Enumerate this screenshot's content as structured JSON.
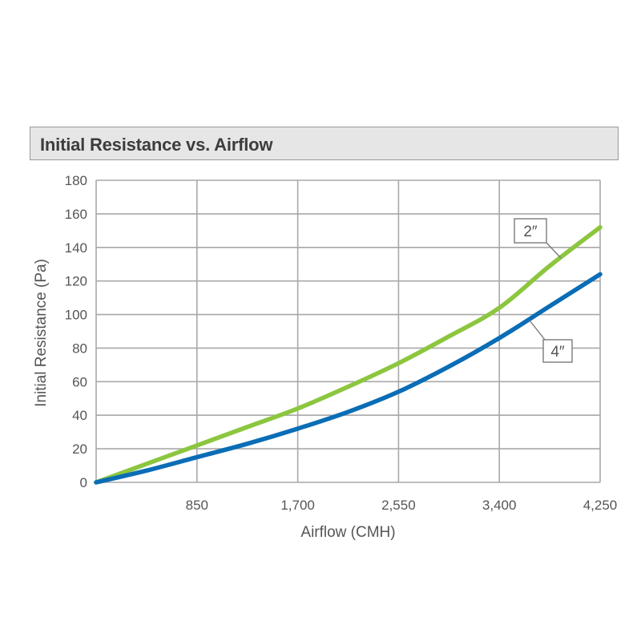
{
  "chart_data": {
    "type": "line",
    "title": "Initial Resistance vs. Airflow",
    "xlabel": "Airflow (CMH)",
    "ylabel": "Initial Resistance (Pa)",
    "xlim": [
      0,
      4250
    ],
    "ylim": [
      0,
      180
    ],
    "x_ticks": [
      {
        "value": 850,
        "label": "850"
      },
      {
        "value": 1700,
        "label": "1,700"
      },
      {
        "value": 2550,
        "label": "2,550"
      },
      {
        "value": 3400,
        "label": "3,400"
      },
      {
        "value": 4250,
        "label": "4,250"
      }
    ],
    "y_ticks": [
      {
        "value": 0,
        "label": "0"
      },
      {
        "value": 20,
        "label": "20"
      },
      {
        "value": 40,
        "label": "40"
      },
      {
        "value": 60,
        "label": "60"
      },
      {
        "value": 80,
        "label": "80"
      },
      {
        "value": 100,
        "label": "100"
      },
      {
        "value": 120,
        "label": "120"
      },
      {
        "value": 140,
        "label": "140"
      },
      {
        "value": 160,
        "label": "160"
      },
      {
        "value": 180,
        "label": "180"
      }
    ],
    "grid": true,
    "series": [
      {
        "name": "2″",
        "color": "#8cc63f",
        "x": [
          0,
          425,
          850,
          1275,
          1700,
          2125,
          2550,
          2975,
          3400,
          3825,
          4250
        ],
        "y": [
          0,
          11,
          22,
          33,
          44,
          57,
          71,
          87,
          104,
          129,
          152
        ]
      },
      {
        "name": "4″",
        "color": "#0a6db6",
        "x": [
          0,
          425,
          850,
          1275,
          1700,
          2125,
          2550,
          2975,
          3400,
          3825,
          4250
        ],
        "y": [
          0,
          7,
          15,
          23,
          32,
          42,
          54,
          69,
          86,
          105,
          124
        ]
      }
    ],
    "callouts": [
      {
        "series": 0,
        "text": "2″"
      },
      {
        "series": 1,
        "text": "4″"
      }
    ]
  }
}
